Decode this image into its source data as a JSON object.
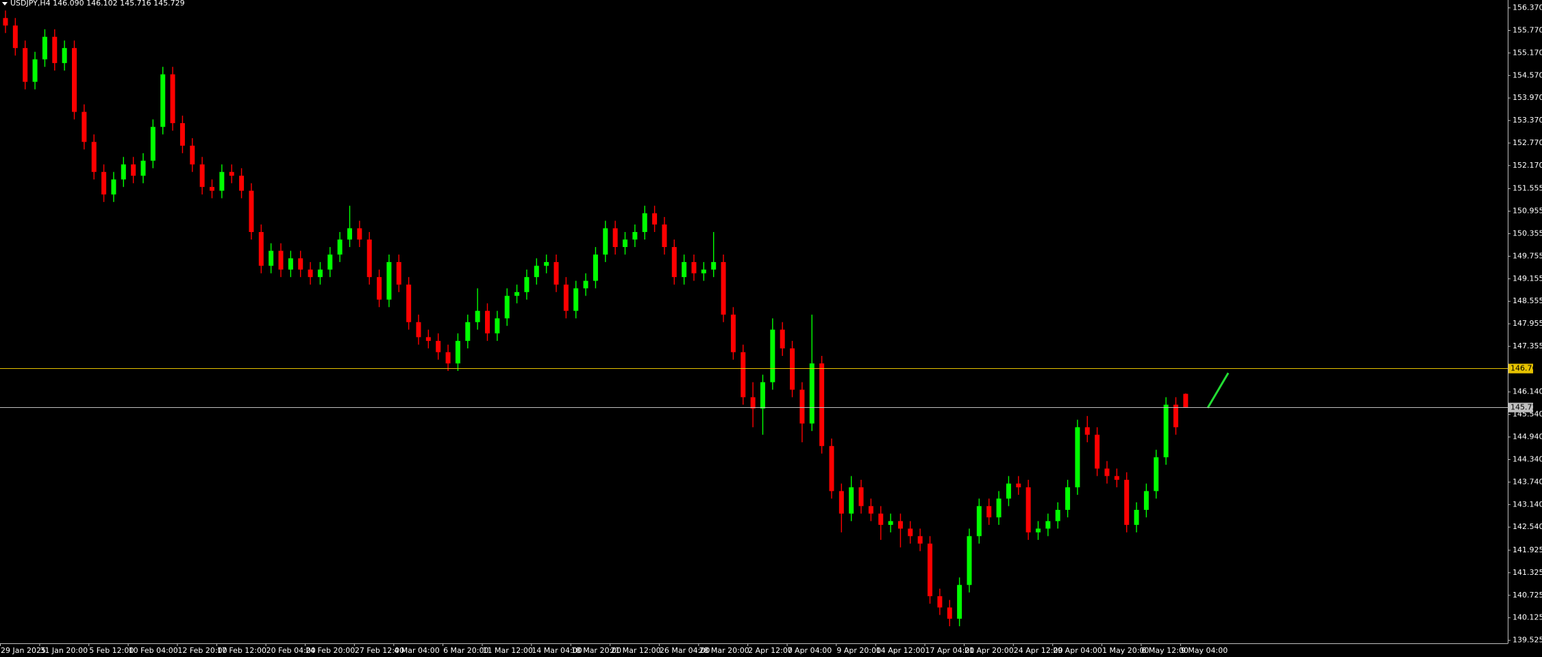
{
  "chart_data": {
    "type": "candlestick",
    "title": "USDJPY,H4  146.090 146.102 145.716 145.729",
    "up_color": "#00ff00",
    "down_color": "#ff0000",
    "ylim": [
      139.445,
      156.58
    ],
    "yticks": [
      {
        "value": 156.37,
        "label": "156.370"
      },
      {
        "value": 155.77,
        "label": "155.770"
      },
      {
        "value": 155.17,
        "label": "155.170"
      },
      {
        "value": 154.57,
        "label": "154.570"
      },
      {
        "value": 153.97,
        "label": "153.970"
      },
      {
        "value": 153.37,
        "label": "153.370"
      },
      {
        "value": 152.77,
        "label": "152.770"
      },
      {
        "value": 152.17,
        "label": "152.170"
      },
      151.555,
      150.955,
      150.355,
      149.755,
      149.155,
      148.555,
      147.955,
      147.355,
      {
        "value": 146.14,
        "label": "146.140"
      },
      {
        "value": 145.54,
        "label": "145.540"
      },
      {
        "value": 144.94,
        "label": "144.940"
      },
      {
        "value": 144.34,
        "label": "144.340"
      },
      {
        "value": 143.74,
        "label": "143.740"
      },
      {
        "value": 143.14,
        "label": "143.140"
      },
      {
        "value": 142.54,
        "label": "142.540"
      },
      141.925,
      141.325,
      140.725,
      140.125,
      139.525
    ],
    "levels": [
      {
        "value": 146.768,
        "color": "#e6c200"
      },
      {
        "value": 145.729,
        "color": "#c0c0c0"
      }
    ],
    "categories": [
      "29 Jan 2025",
      null,
      null,
      null,
      "31 Jan 20:00",
      null,
      null,
      null,
      null,
      "5 Feb 12:00",
      null,
      null,
      null,
      "10 Feb 04:00",
      null,
      null,
      null,
      null,
      "12 Feb 20:00",
      null,
      null,
      null,
      "17 Feb 12:00",
      null,
      null,
      null,
      null,
      "20 Feb 04:00",
      null,
      null,
      null,
      "24 Feb 20:00",
      null,
      null,
      null,
      null,
      "27 Feb 12:00",
      null,
      null,
      null,
      "4 Mar 04:00",
      null,
      null,
      null,
      null,
      "6 Mar 20:00",
      null,
      null,
      null,
      "11 Mar 12:00",
      null,
      null,
      null,
      null,
      "14 Mar 04:00",
      null,
      null,
      null,
      "18 Mar 20:00",
      null,
      null,
      null,
      "21 Mar 12:00",
      null,
      null,
      null,
      null,
      "26 Mar 04:00",
      null,
      null,
      null,
      "28 Mar 20:00",
      null,
      null,
      null,
      null,
      "2 Apr 12:00",
      null,
      null,
      null,
      "7 Apr 04:00",
      null,
      null,
      null,
      null,
      "9 Apr 20:00",
      null,
      null,
      null,
      "14 Apr 12:00",
      null,
      null,
      null,
      null,
      "17 Apr 04:00",
      null,
      null,
      null,
      "21 Apr 20:00",
      null,
      null,
      null,
      null,
      "24 Apr 12:00",
      null,
      null,
      null,
      "29 Apr 04:00",
      null,
      null,
      null,
      null,
      "1 May 20:00",
      null,
      null,
      null,
      "6 May 12:00",
      null,
      null,
      null,
      "9 May 04:00"
    ],
    "ohlc": [
      [
        156.1,
        156.3,
        155.7,
        155.9
      ],
      [
        155.9,
        156.1,
        155.1,
        155.3
      ],
      [
        155.3,
        155.5,
        154.2,
        154.4
      ],
      [
        154.4,
        155.2,
        154.2,
        155.0
      ],
      [
        155.0,
        155.8,
        154.8,
        155.6
      ],
      [
        155.6,
        155.8,
        154.7,
        154.9
      ],
      [
        154.9,
        155.5,
        154.7,
        155.3
      ],
      [
        155.3,
        155.5,
        153.4,
        153.6
      ],
      [
        153.6,
        153.8,
        152.6,
        152.8
      ],
      [
        152.8,
        153.0,
        151.8,
        152.0
      ],
      [
        152.0,
        152.2,
        151.2,
        151.4
      ],
      [
        151.4,
        152.0,
        151.2,
        151.8
      ],
      [
        151.8,
        152.4,
        151.6,
        152.2
      ],
      [
        152.2,
        152.4,
        151.7,
        151.9
      ],
      [
        151.9,
        152.5,
        151.7,
        152.3
      ],
      [
        152.3,
        153.4,
        152.1,
        153.2
      ],
      [
        153.2,
        154.8,
        153.0,
        154.6
      ],
      [
        154.6,
        154.8,
        153.1,
        153.3
      ],
      [
        153.3,
        153.5,
        152.5,
        152.7
      ],
      [
        152.7,
        152.9,
        152.0,
        152.2
      ],
      [
        152.2,
        152.4,
        151.4,
        151.6
      ],
      [
        151.6,
        151.8,
        151.3,
        151.5
      ],
      [
        151.5,
        152.2,
        151.3,
        152.0
      ],
      [
        152.0,
        152.2,
        151.7,
        151.9
      ],
      [
        151.9,
        152.1,
        151.3,
        151.5
      ],
      [
        151.5,
        151.7,
        150.2,
        150.4
      ],
      [
        150.4,
        150.6,
        149.3,
        149.5
      ],
      [
        149.5,
        150.1,
        149.3,
        149.9
      ],
      [
        149.9,
        150.1,
        149.2,
        149.4
      ],
      [
        149.4,
        149.9,
        149.2,
        149.7
      ],
      [
        149.7,
        149.9,
        149.2,
        149.4
      ],
      [
        149.4,
        149.6,
        149.0,
        149.2
      ],
      [
        149.2,
        149.6,
        149.0,
        149.4
      ],
      [
        149.4,
        150.0,
        149.2,
        149.8
      ],
      [
        149.8,
        150.4,
        149.6,
        150.2
      ],
      [
        150.2,
        151.1,
        150.0,
        150.5
      ],
      [
        150.5,
        150.7,
        150.0,
        150.2
      ],
      [
        150.2,
        150.4,
        149.0,
        149.2
      ],
      [
        149.2,
        149.4,
        148.4,
        148.6
      ],
      [
        148.6,
        149.8,
        148.4,
        149.6
      ],
      [
        149.6,
        149.8,
        148.8,
        149.0
      ],
      [
        149.0,
        149.2,
        147.8,
        148.0
      ],
      [
        148.0,
        148.2,
        147.4,
        147.6
      ],
      [
        147.6,
        147.8,
        147.3,
        147.5
      ],
      [
        147.5,
        147.7,
        147.0,
        147.2
      ],
      [
        147.2,
        147.4,
        146.7,
        146.9
      ],
      [
        146.9,
        147.7,
        146.7,
        147.5
      ],
      [
        147.5,
        148.2,
        147.3,
        148.0
      ],
      [
        148.0,
        148.9,
        147.8,
        148.3
      ],
      [
        148.3,
        148.5,
        147.5,
        147.7
      ],
      [
        147.7,
        148.3,
        147.5,
        148.1
      ],
      [
        148.1,
        148.9,
        147.9,
        148.7
      ],
      [
        148.7,
        149.0,
        148.5,
        148.8
      ],
      [
        148.8,
        149.4,
        148.6,
        149.2
      ],
      [
        149.2,
        149.7,
        149.0,
        149.5
      ],
      [
        149.5,
        149.8,
        149.3,
        149.6
      ],
      [
        149.6,
        149.8,
        148.8,
        149.0
      ],
      [
        149.0,
        149.2,
        148.1,
        148.3
      ],
      [
        148.3,
        149.1,
        148.1,
        148.9
      ],
      [
        148.9,
        149.3,
        148.7,
        149.1
      ],
      [
        149.1,
        150.0,
        148.9,
        149.8
      ],
      [
        149.8,
        150.7,
        149.6,
        150.5
      ],
      [
        150.5,
        150.7,
        149.8,
        150.0
      ],
      [
        150.0,
        150.4,
        149.8,
        150.2
      ],
      [
        150.2,
        150.6,
        150.0,
        150.4
      ],
      [
        150.4,
        151.1,
        150.2,
        150.9
      ],
      [
        150.9,
        151.1,
        150.4,
        150.6
      ],
      [
        150.6,
        150.8,
        149.8,
        150.0
      ],
      [
        150.0,
        150.2,
        149.0,
        149.2
      ],
      [
        149.2,
        149.8,
        149.0,
        149.6
      ],
      [
        149.6,
        149.8,
        149.1,
        149.3
      ],
      [
        149.3,
        149.6,
        149.1,
        149.4
      ],
      [
        149.4,
        150.4,
        149.2,
        149.6
      ],
      [
        149.6,
        149.8,
        148.0,
        148.2
      ],
      [
        148.2,
        148.4,
        147.0,
        147.2
      ],
      [
        147.2,
        147.4,
        145.8,
        146.0
      ],
      [
        146.0,
        146.4,
        145.2,
        145.7
      ],
      [
        145.7,
        146.6,
        145.0,
        146.4
      ],
      [
        146.4,
        148.1,
        146.2,
        147.8
      ],
      [
        147.8,
        148.0,
        147.1,
        147.3
      ],
      [
        147.3,
        147.5,
        146.0,
        146.2
      ],
      [
        146.2,
        146.4,
        144.8,
        145.3
      ],
      [
        145.3,
        148.2,
        145.1,
        146.9
      ],
      [
        146.9,
        147.1,
        144.5,
        144.7
      ],
      [
        144.7,
        144.9,
        143.3,
        143.5
      ],
      [
        143.5,
        143.7,
        142.4,
        142.9
      ],
      [
        142.9,
        143.9,
        142.7,
        143.6
      ],
      [
        143.6,
        143.8,
        142.9,
        143.1
      ],
      [
        143.1,
        143.3,
        142.7,
        142.9
      ],
      [
        142.9,
        143.1,
        142.2,
        142.6
      ],
      [
        142.6,
        142.9,
        142.4,
        142.7
      ],
      [
        142.7,
        142.9,
        142.0,
        142.5
      ],
      [
        142.5,
        142.7,
        142.1,
        142.3
      ],
      [
        142.3,
        142.5,
        141.9,
        142.1
      ],
      [
        142.1,
        142.3,
        140.5,
        140.7
      ],
      [
        140.7,
        140.9,
        140.2,
        140.4
      ],
      [
        140.4,
        140.6,
        139.9,
        140.1
      ],
      [
        140.1,
        141.2,
        139.9,
        141.0
      ],
      [
        141.0,
        142.5,
        140.8,
        142.3
      ],
      [
        142.3,
        143.3,
        142.1,
        143.1
      ],
      [
        143.1,
        143.3,
        142.6,
        142.8
      ],
      [
        142.8,
        143.5,
        142.6,
        143.3
      ],
      [
        143.3,
        143.9,
        143.1,
        143.7
      ],
      [
        143.7,
        143.9,
        143.4,
        143.6
      ],
      [
        143.6,
        143.8,
        142.2,
        142.4
      ],
      [
        142.4,
        142.7,
        142.2,
        142.5
      ],
      [
        142.5,
        142.9,
        142.3,
        142.7
      ],
      [
        142.7,
        143.2,
        142.5,
        143.0
      ],
      [
        143.0,
        143.8,
        142.8,
        143.6
      ],
      [
        143.6,
        145.4,
        143.4,
        145.2
      ],
      [
        145.2,
        145.5,
        144.8,
        145.0
      ],
      [
        145.0,
        145.2,
        143.9,
        144.1
      ],
      [
        144.1,
        144.3,
        143.7,
        143.9
      ],
      [
        143.9,
        144.1,
        143.6,
        143.8
      ],
      [
        143.8,
        144.0,
        142.4,
        142.6
      ],
      [
        142.6,
        143.2,
        142.4,
        143.0
      ],
      [
        143.0,
        143.7,
        142.8,
        143.5
      ],
      [
        143.5,
        144.6,
        143.3,
        144.4
      ],
      [
        144.4,
        146.0,
        144.2,
        145.8
      ],
      [
        145.8,
        146.0,
        145.0,
        145.2
      ],
      [
        146.09,
        146.102,
        145.716,
        145.729
      ]
    ]
  }
}
